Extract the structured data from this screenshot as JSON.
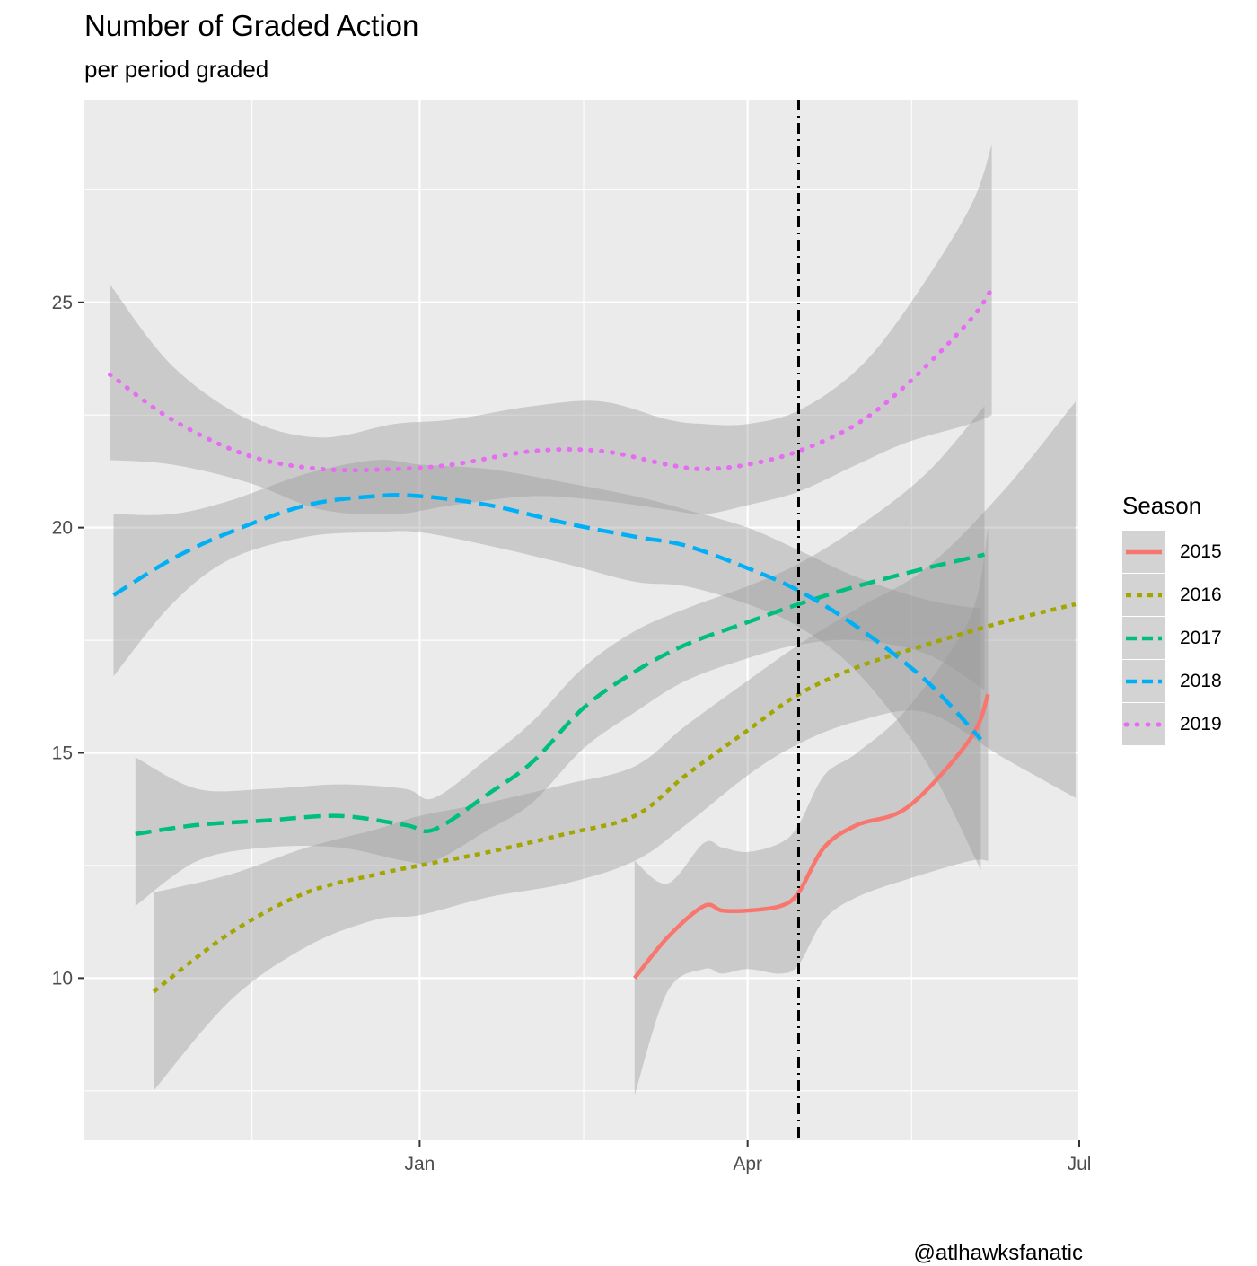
{
  "title": "Number of Graded Action",
  "subtitle": "per period graded",
  "caption": "@atlhawksfanatic",
  "chart_data": {
    "type": "line",
    "title": "Number of Graded Action",
    "subtitle": "per period graded",
    "xlabel": "",
    "ylabel": "",
    "x_range": [
      "2018-10-01",
      "2019-07-01"
    ],
    "ylim": [
      6.4,
      29.5
    ],
    "x_ticks": [
      {
        "date": "2019-01-01",
        "label": "Jan"
      },
      {
        "date": "2019-04-01",
        "label": "Apr"
      },
      {
        "date": "2019-07-01",
        "label": "Jul"
      }
    ],
    "x_minor_ticks": [
      "2018-11-16",
      "2019-02-15",
      "2019-05-16"
    ],
    "y_ticks": [
      10,
      15,
      20,
      25
    ],
    "y_minor_ticks": [
      7.5,
      12.5,
      17.5,
      22.5,
      27.5
    ],
    "grid": true,
    "legend_title": "Season",
    "legend_position": "right",
    "vline": {
      "x": "2019-04-15",
      "style": "dotdash",
      "color": "#000000"
    },
    "series": [
      {
        "name": "2015",
        "color": "#F8766D",
        "dash": "solid",
        "x": [
          "2019-03-01",
          "2019-03-10",
          "2019-03-20",
          "2019-03-25",
          "2019-04-01",
          "2019-04-10",
          "2019-04-15",
          "2019-04-22",
          "2019-05-01",
          "2019-05-15",
          "2019-06-01",
          "2019-06-06"
        ],
        "y": [
          10.0,
          10.9,
          11.6,
          11.5,
          11.5,
          11.6,
          11.9,
          12.9,
          13.4,
          13.8,
          15.3,
          16.3
        ],
        "lower": [
          7.4,
          9.7,
          10.2,
          10.1,
          10.2,
          10.1,
          10.3,
          11.3,
          11.8,
          12.2,
          12.6,
          12.6
        ],
        "upper": [
          12.6,
          12.1,
          13.0,
          12.9,
          12.8,
          13.0,
          13.4,
          14.5,
          15.0,
          16.0,
          18.0,
          20.0
        ]
      },
      {
        "name": "2016",
        "color": "#A3A500",
        "dash": "shortdash",
        "x": [
          "2018-10-20",
          "2018-11-10",
          "2018-12-01",
          "2018-12-20",
          "2019-01-01",
          "2019-01-20",
          "2019-02-10",
          "2019-03-01",
          "2019-03-15",
          "2019-04-01",
          "2019-04-15",
          "2019-05-01",
          "2019-05-20",
          "2019-06-10",
          "2019-06-30"
        ],
        "y": [
          9.7,
          11.0,
          11.9,
          12.3,
          12.5,
          12.8,
          13.2,
          13.6,
          14.5,
          15.5,
          16.3,
          16.9,
          17.4,
          17.9,
          18.3
        ],
        "lower": [
          7.5,
          9.5,
          10.7,
          11.3,
          11.4,
          11.8,
          12.1,
          12.6,
          13.4,
          14.5,
          15.2,
          15.7,
          15.9,
          14.9,
          14.0
        ],
        "upper": [
          11.9,
          12.3,
          12.9,
          13.3,
          13.6,
          13.9,
          14.3,
          14.7,
          15.6,
          16.6,
          17.4,
          18.2,
          19.1,
          20.8,
          22.8
        ]
      },
      {
        "name": "2017",
        "color": "#00BF7D",
        "dash": "longdash",
        "x": [
          "2018-10-15",
          "2018-11-01",
          "2018-11-20",
          "2018-12-10",
          "2018-12-28",
          "2019-01-05",
          "2019-01-20",
          "2019-02-01",
          "2019-02-15",
          "2019-03-01",
          "2019-03-15",
          "2019-04-01",
          "2019-04-15",
          "2019-05-01",
          "2019-05-20",
          "2019-06-05"
        ],
        "y": [
          13.2,
          13.4,
          13.5,
          13.6,
          13.4,
          13.3,
          14.1,
          14.8,
          16.0,
          16.8,
          17.4,
          17.9,
          18.3,
          18.7,
          19.1,
          19.4
        ],
        "lower": [
          11.6,
          12.6,
          12.9,
          12.9,
          12.6,
          12.6,
          13.3,
          13.9,
          15.1,
          15.9,
          16.6,
          17.1,
          17.4,
          17.5,
          17.2,
          16.4
        ],
        "upper": [
          14.9,
          14.2,
          14.2,
          14.3,
          14.2,
          14.0,
          14.9,
          15.7,
          16.9,
          17.7,
          18.2,
          18.7,
          19.2,
          20.0,
          21.2,
          22.7
        ]
      },
      {
        "name": "2018",
        "color": "#00B0F6",
        "dash": "longdash",
        "x": [
          "2018-10-09",
          "2018-10-25",
          "2018-11-10",
          "2018-12-01",
          "2018-12-20",
          "2019-01-01",
          "2019-01-20",
          "2019-02-10",
          "2019-03-01",
          "2019-03-15",
          "2019-04-01",
          "2019-04-15",
          "2019-05-01",
          "2019-05-20",
          "2019-06-04"
        ],
        "y": [
          18.5,
          19.3,
          19.9,
          20.5,
          20.7,
          20.7,
          20.5,
          20.1,
          19.8,
          19.6,
          19.1,
          18.6,
          17.8,
          16.6,
          15.3
        ],
        "lower": [
          16.7,
          18.3,
          19.3,
          19.8,
          19.9,
          19.9,
          19.6,
          19.2,
          18.8,
          18.7,
          18.3,
          17.8,
          16.8,
          14.8,
          12.4
        ],
        "upper": [
          20.3,
          20.3,
          20.6,
          21.2,
          21.5,
          21.4,
          21.3,
          21.0,
          20.7,
          20.4,
          20.0,
          19.5,
          18.9,
          18.4,
          18.2
        ]
      },
      {
        "name": "2019",
        "color": "#E76BF3",
        "dash": "dotted",
        "x": [
          "2018-10-08",
          "2018-10-25",
          "2018-11-15",
          "2018-12-05",
          "2018-12-25",
          "2019-01-10",
          "2019-02-01",
          "2019-02-20",
          "2019-03-10",
          "2019-03-20",
          "2019-04-01",
          "2019-04-15",
          "2019-05-01",
          "2019-05-15",
          "2019-06-01",
          "2019-06-07"
        ],
        "y": [
          23.4,
          22.4,
          21.6,
          21.3,
          21.3,
          21.4,
          21.7,
          21.7,
          21.4,
          21.3,
          21.4,
          21.7,
          22.3,
          23.2,
          24.6,
          25.3
        ],
        "lower": [
          21.5,
          21.4,
          21.0,
          20.4,
          20.3,
          20.5,
          20.7,
          20.6,
          20.4,
          20.3,
          20.5,
          20.8,
          21.4,
          21.9,
          22.3,
          22.5
        ],
        "upper": [
          25.4,
          23.6,
          22.4,
          22.0,
          22.3,
          22.4,
          22.7,
          22.8,
          22.4,
          22.3,
          22.3,
          22.6,
          23.5,
          24.9,
          27.1,
          28.5
        ]
      }
    ]
  }
}
